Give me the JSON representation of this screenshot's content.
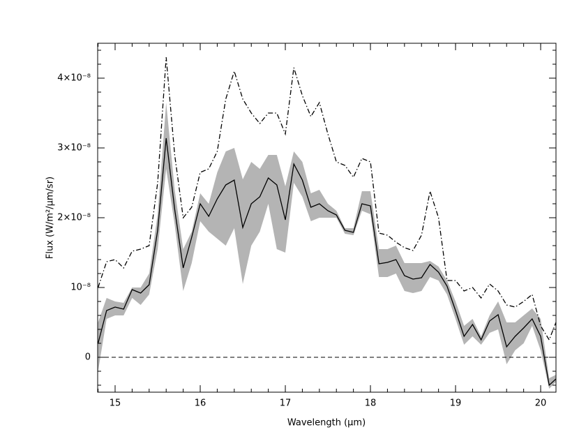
{
  "chart_data": {
    "type": "line",
    "xlabel": "Wavelength (µm)",
    "ylabel": "Flux (W/m²/µm/sr)",
    "x": [
      14.8,
      14.9,
      15.0,
      15.1,
      15.2,
      15.3,
      15.4,
      15.5,
      15.6,
      15.7,
      15.8,
      15.9,
      16.0,
      16.1,
      16.2,
      16.3,
      16.4,
      16.5,
      16.6,
      16.7,
      16.8,
      16.9,
      17.0,
      17.1,
      17.2,
      17.3,
      17.4,
      17.5,
      17.6,
      17.7,
      17.8,
      17.9,
      18.0,
      18.1,
      18.2,
      18.3,
      18.4,
      18.5,
      18.6,
      18.7,
      18.8,
      18.9,
      19.0,
      19.1,
      19.2,
      19.3,
      19.4,
      19.5,
      19.6,
      19.7,
      19.8,
      19.9,
      20.0,
      20.1,
      20.18
    ],
    "series": [
      {
        "color": "#000000",
        "style": "solid",
        "values": [
          2e-09,
          6.7e-09,
          7.2e-09,
          6.9e-09,
          9.7e-09,
          9.2e-09,
          1.04e-08,
          1.82e-08,
          3.14e-08,
          2.12e-08,
          1.28e-08,
          1.72e-08,
          2.2e-08,
          2.02e-08,
          2.27e-08,
          2.47e-08,
          2.54e-08,
          1.86e-08,
          2.2e-08,
          2.3e-08,
          2.57e-08,
          2.47e-08,
          1.97e-08,
          2.77e-08,
          2.54e-08,
          2.15e-08,
          2.2e-08,
          2.1e-08,
          2.04e-08,
          1.82e-08,
          1.79e-08,
          2.2e-08,
          2.17e-08,
          1.34e-08,
          1.36e-08,
          1.4e-08,
          1.17e-08,
          1.12e-08,
          1.14e-08,
          1.33e-08,
          1.22e-08,
          1.02e-08,
          6.7e-09,
          3e-09,
          4.7e-09,
          2.5e-09,
          5.2e-09,
          6.1e-09,
          1.5e-09,
          3e-09,
          4.2e-09,
          5.5e-09,
          3e-09,
          -4e-09,
          -3.1e-09
        ]
      },
      {
        "color": "#000000",
        "style": "dashdot",
        "values": [
          1e-08,
          1.37e-08,
          1.4e-08,
          1.28e-08,
          1.52e-08,
          1.55e-08,
          1.6e-08,
          2.5e-08,
          4.3e-08,
          2.9e-08,
          2e-08,
          2.15e-08,
          2.65e-08,
          2.7e-08,
          2.95e-08,
          3.7e-08,
          4.1e-08,
          3.7e-08,
          3.5e-08,
          3.35e-08,
          3.5e-08,
          3.5e-08,
          3.2e-08,
          4.15e-08,
          3.75e-08,
          3.45e-08,
          3.65e-08,
          3.2e-08,
          2.8e-08,
          2.75e-08,
          2.58e-08,
          2.85e-08,
          2.8e-08,
          1.78e-08,
          1.75e-08,
          1.65e-08,
          1.57e-08,
          1.53e-08,
          1.75e-08,
          2.38e-08,
          2e-08,
          1.1e-08,
          1.1e-08,
          9.5e-09,
          1e-08,
          8.5e-09,
          1.05e-08,
          9.5e-09,
          7.5e-09,
          7.2e-09,
          8e-09,
          9e-09,
          4.5e-09,
          2.5e-09,
          5e-09
        ]
      }
    ],
    "band": {
      "color": "#b4b4b4",
      "low": [
        -2e-09,
        5.5e-09,
        6e-09,
        6e-09,
        8.5e-09,
        7.5e-09,
        9e-09,
        1.55e-08,
        2.7e-08,
        1.9e-08,
        9.5e-09,
        1.35e-08,
        1.95e-08,
        1.8e-08,
        1.7e-08,
        1.6e-08,
        1.85e-08,
        1.05e-08,
        1.6e-08,
        1.8e-08,
        2.2e-08,
        1.55e-08,
        1.5e-08,
        2.5e-08,
        2.3e-08,
        1.95e-08,
        2e-08,
        2e-08,
        2e-08,
        1.77e-08,
        1.75e-08,
        2.1e-08,
        2.05e-08,
        1.15e-08,
        1.15e-08,
        1.2e-08,
        9.5e-09,
        9.2e-09,
        9.5e-09,
        1.15e-08,
        1.1e-08,
        9e-09,
        5.5e-09,
        1.8e-09,
        3e-09,
        1.8e-09,
        3.5e-09,
        4e-09,
        -1e-09,
        1e-09,
        2e-09,
        4.5e-09,
        1e-09,
        -4.5e-09,
        -3.5e-09
      ],
      "high": [
        5e-09,
        8.5e-09,
        8e-09,
        7.8e-09,
        1e-08,
        1e-08,
        1.2e-08,
        2.05e-08,
        3.65e-08,
        2.4e-08,
        1.55e-08,
        1.8e-08,
        2.35e-08,
        2.2e-08,
        2.65e-08,
        2.95e-08,
        3e-08,
        2.55e-08,
        2.8e-08,
        2.7e-08,
        2.9e-08,
        2.9e-08,
        2.45e-08,
        2.95e-08,
        2.8e-08,
        2.35e-08,
        2.4e-08,
        2.2e-08,
        2.1e-08,
        1.85e-08,
        1.85e-08,
        2.38e-08,
        2.38e-08,
        1.55e-08,
        1.55e-08,
        1.6e-08,
        1.35e-08,
        1.35e-08,
        1.35e-08,
        1.38e-08,
        1.3e-08,
        1.1e-08,
        8e-09,
        4.5e-09,
        5.5e-09,
        3e-09,
        6e-09,
        8e-09,
        5e-09,
        5e-09,
        6e-09,
        7e-09,
        5.5e-09,
        -3e-09,
        -2.5e-09
      ]
    },
    "hline": 0,
    "xlim": [
      14.795,
      20.18
    ],
    "xticks": [
      15,
      16,
      17,
      18,
      19,
      20
    ],
    "xminor": 0.2,
    "ylim": [
      -5e-09,
      4.5e-08
    ],
    "yticks": [
      0,
      {
        "value": 1e-08,
        "label": "10⁻⁸"
      },
      {
        "value": 2e-08,
        "label": "2×10⁻⁸"
      },
      {
        "value": 3e-08,
        "label": "3×10⁻⁸"
      },
      {
        "value": 4e-08,
        "label": "4×10⁻⁸"
      }
    ],
    "yminor": 2e-09
  }
}
